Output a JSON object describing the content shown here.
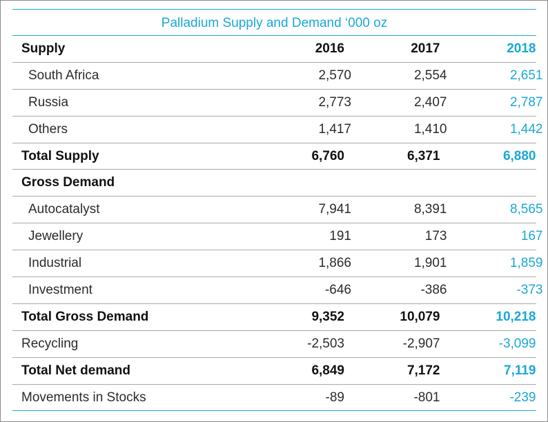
{
  "title": "Palladium Supply and Demand ‘000 oz",
  "colors": {
    "accent": "#1aa8d6",
    "rule": "#1ba9c9",
    "text": "#2b2b2b"
  },
  "header": {
    "label": "Supply",
    "years": [
      "2016",
      "2017",
      "2018"
    ]
  },
  "rows": [
    {
      "label": "South Africa",
      "values": [
        "2,570",
        "2,554",
        "2,651"
      ]
    },
    {
      "label": "Russia",
      "values": [
        "2,773",
        "2,407",
        "2,787"
      ]
    },
    {
      "label": "Others",
      "values": [
        "1,417",
        "1,410",
        "1,442"
      ]
    },
    {
      "label": "Total Supply",
      "values": [
        "6,760",
        "6,371",
        "6,880"
      ]
    },
    {
      "label": "Gross Demand",
      "values": [
        "",
        "",
        ""
      ]
    },
    {
      "label": "Autocatalyst",
      "values": [
        "7,941",
        "8,391",
        "8,565"
      ]
    },
    {
      "label": "Jewellery",
      "values": [
        "191",
        "173",
        "167"
      ]
    },
    {
      "label": "Industrial",
      "values": [
        "1,866",
        "1,901",
        "1,859"
      ]
    },
    {
      "label": "Investment",
      "values": [
        "-646",
        "-386",
        "-373"
      ]
    },
    {
      "label": "Total Gross Demand",
      "values": [
        "9,352",
        "10,079",
        "10,218"
      ]
    },
    {
      "label": "Recycling",
      "values": [
        "-2,503",
        "-2,907",
        "-3,099"
      ]
    },
    {
      "label": "Total Net demand",
      "values": [
        "6,849",
        "7,172",
        "7,119"
      ]
    },
    {
      "label": "Movements in Stocks",
      "values": [
        "-89",
        "-801",
        "-239"
      ]
    }
  ]
}
